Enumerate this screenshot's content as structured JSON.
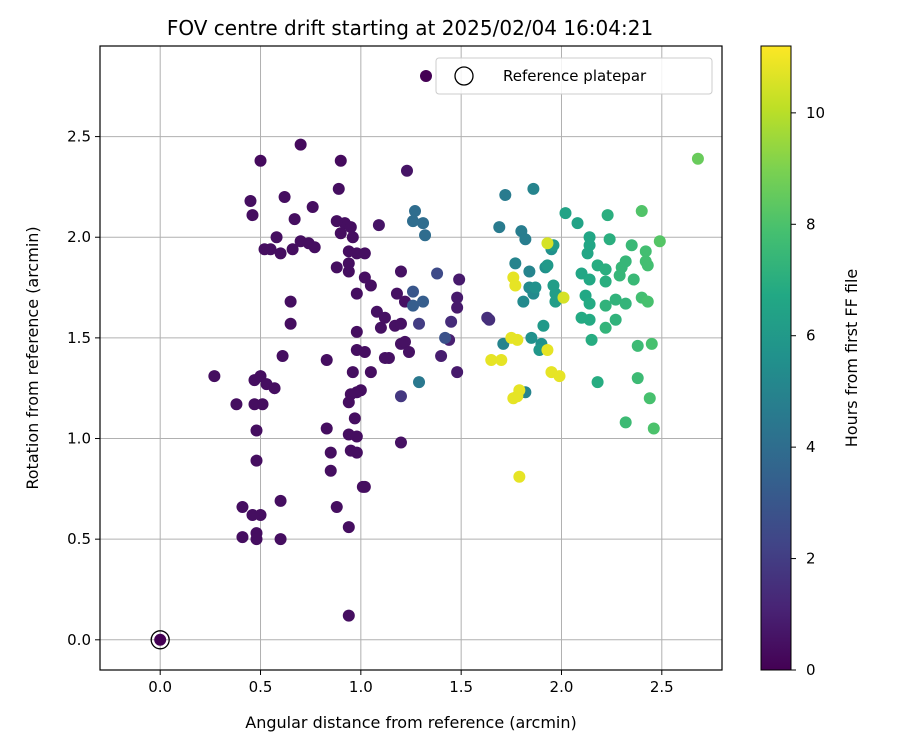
{
  "chart_data": {
    "type": "scatter",
    "title": "FOV centre drift starting at 2025/02/04 16:04:21",
    "xlabel": "Angular distance from reference (arcmin)",
    "ylabel": "Rotation from reference (arcmin)",
    "xlim": [
      -0.3,
      2.8
    ],
    "ylim": [
      -0.15,
      2.95
    ],
    "x_ticks": [
      "0.0",
      "0.5",
      "1.0",
      "1.5",
      "2.0",
      "2.5"
    ],
    "y_ticks": [
      "0.0",
      "0.5",
      "1.0",
      "1.5",
      "2.0",
      "2.5"
    ],
    "grid": true,
    "legend_position": "top-right",
    "legend": [
      "Reference platepar"
    ],
    "colormap": "viridis",
    "colorbar": {
      "label": "Hours from first FF file",
      "range": [
        0,
        11.2
      ],
      "ticks": [
        "0",
        "2",
        "4",
        "6",
        "8",
        "10"
      ]
    },
    "reference_point": [
      0,
      0
    ],
    "points": [
      [
        0.0,
        0.0,
        0.0
      ],
      [
        0.5,
        2.38,
        0.3
      ],
      [
        0.7,
        2.46,
        0.3
      ],
      [
        0.9,
        2.38,
        0.3
      ],
      [
        0.45,
        2.18,
        0.4
      ],
      [
        0.46,
        2.11,
        0.4
      ],
      [
        0.62,
        2.2,
        0.4
      ],
      [
        0.76,
        2.15,
        0.4
      ],
      [
        0.89,
        2.24,
        0.4
      ],
      [
        0.92,
        2.07,
        0.4
      ],
      [
        0.95,
        2.05,
        0.4
      ],
      [
        0.88,
        2.08,
        0.4
      ],
      [
        0.58,
        2.0,
        0.4
      ],
      [
        0.67,
        2.09,
        0.4
      ],
      [
        0.52,
        1.94,
        0.4
      ],
      [
        0.55,
        1.94,
        0.4
      ],
      [
        0.6,
        1.92,
        0.4
      ],
      [
        0.66,
        1.94,
        0.4
      ],
      [
        0.7,
        1.98,
        0.4
      ],
      [
        0.74,
        1.97,
        0.4
      ],
      [
        0.77,
        1.95,
        0.4
      ],
      [
        0.9,
        2.02,
        0.4
      ],
      [
        0.96,
        2.0,
        0.4
      ],
      [
        0.94,
        1.93,
        0.4
      ],
      [
        0.98,
        1.92,
        0.4
      ],
      [
        1.02,
        1.92,
        0.4
      ],
      [
        0.88,
        1.85,
        0.4
      ],
      [
        0.94,
        1.87,
        0.4
      ],
      [
        0.98,
        1.72,
        0.4
      ],
      [
        1.02,
        1.8,
        0.4
      ],
      [
        1.05,
        1.76,
        0.4
      ],
      [
        0.94,
        1.83,
        0.4
      ],
      [
        0.65,
        1.68,
        0.4
      ],
      [
        0.65,
        1.57,
        0.4
      ],
      [
        0.61,
        1.41,
        0.4
      ],
      [
        0.83,
        1.39,
        0.4
      ],
      [
        0.98,
        1.53,
        0.4
      ],
      [
        0.98,
        1.44,
        0.4
      ],
      [
        1.02,
        1.43,
        0.4
      ],
      [
        0.96,
        1.33,
        0.4
      ],
      [
        1.05,
        1.33,
        0.4
      ],
      [
        0.98,
        1.23,
        0.4
      ],
      [
        0.95,
        1.22,
        0.4
      ],
      [
        1.0,
        1.24,
        0.4
      ],
      [
        0.94,
        1.18,
        0.4
      ],
      [
        0.97,
        1.1,
        0.4
      ],
      [
        0.98,
        1.01,
        0.4
      ],
      [
        0.94,
        1.02,
        0.4
      ],
      [
        0.95,
        0.94,
        0.4
      ],
      [
        0.98,
        0.93,
        0.4
      ],
      [
        0.83,
        1.05,
        0.4
      ],
      [
        0.85,
        0.93,
        0.4
      ],
      [
        0.85,
        0.84,
        0.4
      ],
      [
        0.88,
        0.66,
        0.4
      ],
      [
        1.01,
        0.76,
        0.4
      ],
      [
        1.02,
        0.76,
        0.4
      ],
      [
        0.94,
        0.56,
        0.4
      ],
      [
        0.94,
        0.12,
        0.4
      ],
      [
        0.6,
        0.69,
        0.4
      ],
      [
        0.6,
        0.5,
        0.4
      ],
      [
        0.41,
        0.66,
        0.4
      ],
      [
        0.41,
        0.51,
        0.4
      ],
      [
        0.46,
        0.62,
        0.4
      ],
      [
        0.5,
        0.62,
        0.4
      ],
      [
        0.48,
        0.53,
        0.4
      ],
      [
        0.48,
        0.5,
        0.4
      ],
      [
        0.48,
        0.89,
        0.4
      ],
      [
        0.48,
        1.04,
        0.4
      ],
      [
        0.47,
        1.17,
        0.4
      ],
      [
        0.51,
        1.17,
        0.4
      ],
      [
        0.38,
        1.17,
        0.4
      ],
      [
        0.27,
        1.31,
        0.4
      ],
      [
        0.47,
        1.29,
        0.4
      ],
      [
        0.5,
        1.31,
        0.4
      ],
      [
        0.53,
        1.27,
        0.4
      ],
      [
        0.57,
        1.25,
        0.4
      ],
      [
        1.2,
        0.98,
        0.5
      ],
      [
        1.1,
        1.55,
        0.5
      ],
      [
        1.08,
        1.63,
        0.5
      ],
      [
        1.12,
        1.6,
        0.5
      ],
      [
        1.14,
        1.4,
        0.5
      ],
      [
        1.17,
        1.56,
        0.5
      ],
      [
        1.2,
        1.57,
        0.5
      ],
      [
        1.12,
        1.4,
        0.5
      ],
      [
        1.2,
        1.47,
        0.5
      ],
      [
        1.22,
        1.48,
        0.5
      ],
      [
        1.24,
        1.43,
        0.5
      ],
      [
        1.18,
        1.72,
        0.5
      ],
      [
        1.22,
        1.68,
        0.5
      ],
      [
        1.2,
        1.83,
        0.5
      ],
      [
        1.23,
        2.33,
        0.6
      ],
      [
        1.09,
        2.06,
        0.6
      ],
      [
        1.48,
        1.7,
        0.8
      ],
      [
        1.49,
        1.79,
        0.8
      ],
      [
        1.48,
        1.33,
        0.8
      ],
      [
        1.48,
        1.65,
        0.8
      ],
      [
        1.4,
        1.41,
        0.9
      ],
      [
        1.44,
        1.49,
        1.0
      ],
      [
        1.45,
        1.58,
        1.4
      ],
      [
        1.63,
        1.6,
        1.5
      ],
      [
        1.64,
        1.59,
        1.5
      ],
      [
        1.2,
        1.21,
        1.8
      ],
      [
        1.29,
        1.57,
        2.0
      ],
      [
        1.38,
        1.82,
        2.5
      ],
      [
        1.42,
        1.5,
        2.8
      ],
      [
        1.26,
        1.73,
        3.0
      ],
      [
        1.31,
        1.68,
        3.3
      ],
      [
        1.26,
        1.66,
        3.3
      ],
      [
        1.27,
        2.13,
        4.0
      ],
      [
        1.31,
        2.07,
        4.0
      ],
      [
        1.32,
        2.01,
        4.0
      ],
      [
        1.26,
        2.08,
        4.0
      ],
      [
        1.29,
        1.28,
        4.5
      ],
      [
        1.72,
        2.21,
        4.6
      ],
      [
        1.69,
        2.05,
        4.6
      ],
      [
        1.8,
        2.03,
        4.7
      ],
      [
        1.82,
        1.99,
        4.7
      ],
      [
        1.77,
        1.87,
        5.0
      ],
      [
        1.84,
        1.83,
        5.0
      ],
      [
        1.86,
        2.24,
        5.0
      ],
      [
        1.71,
        1.47,
        5.0
      ],
      [
        1.82,
        1.23,
        5.0
      ],
      [
        1.81,
        1.68,
        5.3
      ],
      [
        1.84,
        1.75,
        5.3
      ],
      [
        1.86,
        1.72,
        5.3
      ],
      [
        1.87,
        1.75,
        5.6
      ],
      [
        1.92,
        1.85,
        5.6
      ],
      [
        1.95,
        1.94,
        5.6
      ],
      [
        1.9,
        1.47,
        5.6
      ],
      [
        1.85,
        1.5,
        5.6
      ],
      [
        1.89,
        1.44,
        5.9
      ],
      [
        1.91,
        1.56,
        6.0
      ],
      [
        1.93,
        1.86,
        6.0
      ],
      [
        1.96,
        1.96,
        6.1
      ],
      [
        1.97,
        1.72,
        6.2
      ],
      [
        1.97,
        1.68,
        6.2
      ],
      [
        1.96,
        1.76,
        6.2
      ],
      [
        2.02,
        2.12,
        6.5
      ],
      [
        2.08,
        2.07,
        6.5
      ],
      [
        2.13,
        1.92,
        6.6
      ],
      [
        2.14,
        1.96,
        6.6
      ],
      [
        2.14,
        2.0,
        6.6
      ],
      [
        2.1,
        1.82,
        6.6
      ],
      [
        2.14,
        1.79,
        6.7
      ],
      [
        2.12,
        1.71,
        6.7
      ],
      [
        2.14,
        1.67,
        6.8
      ],
      [
        2.1,
        1.6,
        6.8
      ],
      [
        2.14,
        1.59,
        6.8
      ],
      [
        2.15,
        1.49,
        6.9
      ],
      [
        2.18,
        1.28,
        6.9
      ],
      [
        2.18,
        1.86,
        6.9
      ],
      [
        2.23,
        2.11,
        7.0
      ],
      [
        2.24,
        1.99,
        7.0
      ],
      [
        2.22,
        1.84,
        7.0
      ],
      [
        2.22,
        1.78,
        7.0
      ],
      [
        2.22,
        1.66,
        7.2
      ],
      [
        2.27,
        1.69,
        7.2
      ],
      [
        2.27,
        1.59,
        7.2
      ],
      [
        2.22,
        1.55,
        7.3
      ],
      [
        2.32,
        1.67,
        7.3
      ],
      [
        2.29,
        1.81,
        7.4
      ],
      [
        2.3,
        1.85,
        7.4
      ],
      [
        2.32,
        1.88,
        7.4
      ],
      [
        2.35,
        1.96,
        7.5
      ],
      [
        2.36,
        1.79,
        7.5
      ],
      [
        2.38,
        1.46,
        7.6
      ],
      [
        2.38,
        1.3,
        7.6
      ],
      [
        2.32,
        1.08,
        7.6
      ],
      [
        2.4,
        1.7,
        7.8
      ],
      [
        2.42,
        1.93,
        7.8
      ],
      [
        2.42,
        1.88,
        7.8
      ],
      [
        2.43,
        1.86,
        7.8
      ],
      [
        2.43,
        1.68,
        7.9
      ],
      [
        2.45,
        1.47,
        7.9
      ],
      [
        2.44,
        1.2,
        7.9
      ],
      [
        2.46,
        1.05,
        8.0
      ],
      [
        2.4,
        2.13,
        8.1
      ],
      [
        2.49,
        1.98,
        8.2
      ],
      [
        2.68,
        2.39,
        8.6
      ],
      [
        1.93,
        1.97,
        10.5
      ],
      [
        2.01,
        1.7,
        10.5
      ],
      [
        1.76,
        1.8,
        10.8
      ],
      [
        1.77,
        1.76,
        10.8
      ],
      [
        1.75,
        1.5,
        10.8
      ],
      [
        1.78,
        1.49,
        10.8
      ],
      [
        1.78,
        1.21,
        10.8
      ],
      [
        1.76,
        1.2,
        10.8
      ],
      [
        1.79,
        1.24,
        10.8
      ],
      [
        1.65,
        1.39,
        10.8
      ],
      [
        1.7,
        1.39,
        10.8
      ],
      [
        1.93,
        1.44,
        10.8
      ],
      [
        1.95,
        1.33,
        10.8
      ],
      [
        1.99,
        1.31,
        10.8
      ],
      [
        1.79,
        0.81,
        10.8
      ]
    ]
  }
}
